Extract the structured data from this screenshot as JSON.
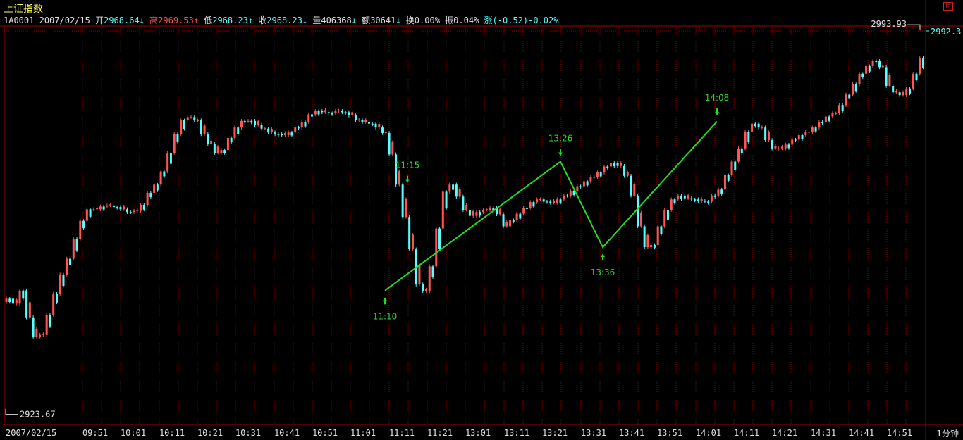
{
  "header": {
    "title": "上证指数",
    "code": "1A0001",
    "date": "2007/02/15",
    "open_label": "开",
    "open": "2968.64",
    "high_label": "高",
    "high": "2969.53",
    "low_label": "低",
    "low": "2968.23",
    "close_label": "收",
    "close": "2968.23",
    "volume_label": "量",
    "volume": "406368",
    "amount_label": "额",
    "amount": "30641",
    "turnover_label": "换",
    "turnover": "0.00%",
    "amplitude_label": "振",
    "amplitude": "0.04%",
    "change_label": "涨",
    "change": "(-0.52)-0.02%"
  },
  "period_label": "1分钟",
  "right_axis_value": "2992.3",
  "colors": {
    "up": "#ff5555",
    "down": "#55ffff",
    "grid": "#8a0000",
    "zigzag": "#22dd22",
    "annotation": "#22dd22"
  },
  "chart_data": {
    "type": "candlestick",
    "title": "上证指数",
    "x_axis_date": "2007/02/15",
    "x_tick_labels": [
      "2007/02/15",
      "09:51",
      "10:01",
      "10:11",
      "10:21",
      "10:31",
      "10:41",
      "10:51",
      "11:01",
      "11:11",
      "11:21",
      "13:01",
      "13:11",
      "13:21",
      "13:31",
      "13:41",
      "13:51",
      "14:01",
      "14:11",
      "14:21",
      "14:31",
      "14:41",
      "14:51"
    ],
    "y_range": [
      2922.6,
      2993.3
    ],
    "min_label": "2923.67",
    "max_label": "2993.93",
    "close_path": [
      [
        0,
        2944.5
      ],
      [
        1,
        2943.6
      ],
      [
        2,
        2946.0
      ],
      [
        3,
        2941.1
      ],
      [
        4,
        2937.6
      ],
      [
        5,
        2937.9
      ],
      [
        6,
        2941.6
      ],
      [
        7,
        2945.4
      ],
      [
        8,
        2948.9
      ],
      [
        9,
        2951.8
      ],
      [
        10,
        2955.4
      ],
      [
        11,
        2958.7
      ],
      [
        12,
        2960.8
      ],
      [
        13,
        2960.8
      ],
      [
        14,
        2961.3
      ],
      [
        15,
        2961.5
      ],
      [
        16,
        2961.2
      ],
      [
        17,
        2960.8
      ],
      [
        18,
        2960.3
      ],
      [
        19,
        2960.5
      ],
      [
        20,
        2961.6
      ],
      [
        21,
        2963.8
      ],
      [
        22,
        2965.3
      ],
      [
        23,
        2967.7
      ],
      [
        24,
        2971.1
      ],
      [
        25,
        2974.5
      ],
      [
        26,
        2977.0
      ],
      [
        27,
        2977.6
      ],
      [
        28,
        2977.0
      ],
      [
        29,
        2974.5
      ],
      [
        30,
        2972.7
      ],
      [
        31,
        2971.1
      ],
      [
        32,
        2971.6
      ],
      [
        33,
        2973.8
      ],
      [
        34,
        2975.7
      ],
      [
        35,
        2976.9
      ],
      [
        36,
        2976.9
      ],
      [
        37,
        2976.2
      ],
      [
        38,
        2975.5
      ],
      [
        39,
        2974.8
      ],
      [
        40,
        2974.5
      ],
      [
        41,
        2974.3
      ],
      [
        42,
        2974.8
      ],
      [
        43,
        2975.7
      ],
      [
        44,
        2976.7
      ],
      [
        45,
        2978.1
      ],
      [
        46,
        2978.7
      ],
      [
        47,
        2978.5
      ],
      [
        48,
        2978.3
      ],
      [
        49,
        2978.7
      ],
      [
        50,
        2978.5
      ],
      [
        51,
        2977.9
      ],
      [
        52,
        2977.0
      ],
      [
        53,
        2976.7
      ],
      [
        54,
        2976.4
      ],
      [
        55,
        2975.7
      ],
      [
        56,
        2974.7
      ],
      [
        57,
        2970.8
      ],
      [
        58,
        2965.3
      ],
      [
        59,
        2959.4
      ],
      [
        60,
        2953.5
      ],
      [
        61,
        2947.1
      ],
      [
        62,
        2945.9
      ],
      [
        63,
        2950.4
      ],
      [
        64,
        2957.3
      ],
      [
        65,
        2964.0
      ],
      [
        66,
        2965.3
      ],
      [
        67,
        2963.1
      ],
      [
        68,
        2960.7
      ],
      [
        69,
        2959.6
      ],
      [
        70,
        2960.3
      ],
      [
        71,
        2960.7
      ],
      [
        72,
        2961.1
      ],
      [
        73,
        2959.9
      ],
      [
        74,
        2957.7
      ],
      [
        75,
        2958.8
      ],
      [
        76,
        2960.0
      ],
      [
        77,
        2961.1
      ],
      [
        78,
        2962.1
      ],
      [
        79,
        2962.6
      ],
      [
        80,
        2962.2
      ],
      [
        81,
        2962.0
      ],
      [
        82,
        2962.6
      ],
      [
        83,
        2963.3
      ],
      [
        84,
        2964.1
      ],
      [
        85,
        2965.0
      ],
      [
        86,
        2965.9
      ],
      [
        87,
        2966.7
      ],
      [
        88,
        2967.5
      ],
      [
        89,
        2968.6
      ],
      [
        90,
        2969.3
      ],
      [
        91,
        2968.7
      ],
      [
        92,
        2966.9
      ],
      [
        93,
        2963.3
      ],
      [
        94,
        2957.7
      ],
      [
        95,
        2953.9
      ],
      [
        96,
        2954.3
      ],
      [
        97,
        2957.7
      ],
      [
        98,
        2960.7
      ],
      [
        99,
        2962.6
      ],
      [
        100,
        2963.3
      ],
      [
        101,
        2962.8
      ],
      [
        102,
        2962.6
      ],
      [
        103,
        2962.3
      ],
      [
        104,
        2962.2
      ],
      [
        105,
        2963.3
      ],
      [
        106,
        2964.4
      ],
      [
        107,
        2967.0
      ],
      [
        108,
        2969.5
      ],
      [
        109,
        2971.9
      ],
      [
        110,
        2974.9
      ],
      [
        111,
        2976.4
      ],
      [
        112,
        2975.7
      ],
      [
        113,
        2973.4
      ],
      [
        114,
        2971.9
      ],
      [
        115,
        2971.9
      ],
      [
        116,
        2972.6
      ],
      [
        117,
        2973.5
      ],
      [
        118,
        2974.3
      ],
      [
        119,
        2974.9
      ],
      [
        120,
        2975.7
      ],
      [
        121,
        2976.7
      ],
      [
        122,
        2977.7
      ],
      [
        123,
        2978.3
      ],
      [
        124,
        2979.8
      ],
      [
        125,
        2981.7
      ],
      [
        126,
        2983.6
      ],
      [
        127,
        2985.5
      ],
      [
        128,
        2986.9
      ],
      [
        129,
        2987.8
      ],
      [
        130,
        2986.7
      ],
      [
        131,
        2983.3
      ],
      [
        132,
        2982.1
      ],
      [
        133,
        2981.6
      ],
      [
        134,
        2982.8
      ],
      [
        135,
        2985.5
      ],
      [
        136,
        2988.4
      ],
      [
        137,
        2991.1
      ],
      [
        138,
        2993.3
      ]
    ],
    "zigzag": [
      {
        "time": "11:10",
        "value": 2946.0
      },
      {
        "time": "13:26",
        "value": 2969.5
      },
      {
        "time": "13:36",
        "value": 2953.9
      },
      {
        "time": "14:08",
        "value": 2976.8
      },
      {
        "time": "14:08",
        "value": 2976.8
      }
    ],
    "annotations": [
      {
        "label": "11:15",
        "direction": "down",
        "value": 2964.6
      },
      {
        "label": "11:10",
        "direction": "up",
        "value": 2945.9
      },
      {
        "label": "13:26",
        "direction": "down",
        "value": 2969.5
      },
      {
        "label": "13:36",
        "direction": "up",
        "value": 2953.9
      },
      {
        "label": "14:08",
        "direction": "down",
        "value": 2976.9
      }
    ]
  }
}
